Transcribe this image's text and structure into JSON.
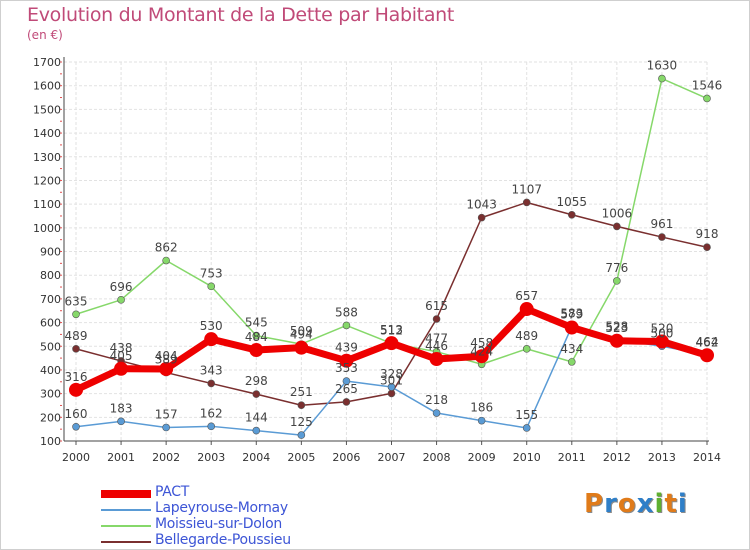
{
  "title": "Evolution du Montant de la Dette par Habitant",
  "unit": "(en €)",
  "logo": {
    "text": "Proxiti",
    "colors": [
      "#e07b1a",
      "#2f7fc8",
      "#e07b1a",
      "#2f7fc8",
      "#5fb030",
      "#e07b1a",
      "#2f7fc8"
    ]
  },
  "chart_data": {
    "type": "line",
    "x": [
      "2000",
      "2001",
      "2002",
      "2003",
      "2004",
      "2005",
      "2006",
      "2007",
      "2008",
      "2009",
      "2010",
      "2011",
      "2012",
      "2013",
      "2014"
    ],
    "ylim": [
      100,
      1700
    ],
    "yticks": [
      "100",
      "200",
      "300",
      "400",
      "500",
      "600",
      "700",
      "800",
      "900",
      "1000",
      "1100",
      "1200",
      "1300",
      "1400",
      "1500",
      "1600",
      "1700"
    ],
    "grid": true,
    "legend_position": "bottom-left",
    "series": [
      {
        "name": "PACT",
        "color": "#ee0000",
        "values": [
          316,
          405,
          404,
          530,
          484,
          494,
          439,
          513,
          446,
          458,
          657,
          579,
          523,
          520,
          462
        ],
        "labels": [
          "316",
          "405",
          "404",
          "530",
          "484",
          "494",
          "439",
          "513",
          "446",
          "458",
          "657",
          "579",
          "523",
          "520",
          "462"
        ]
      },
      {
        "name": "Lapeyrouse-Mornay",
        "color": "#5a9bd5",
        "values": [
          160,
          183,
          157,
          162,
          144,
          125,
          353,
          328,
          218,
          186,
          155,
          583,
          528,
          500,
          464
        ],
        "labels": [
          "160",
          "183",
          "157",
          "162",
          "144",
          "125",
          "353",
          "328",
          "218",
          "186",
          "155",
          "583",
          "528",
          "500",
          "464"
        ]
      },
      {
        "name": "Moissieu-sur-Dolon",
        "color": "#86d86a",
        "values": [
          635,
          696,
          862,
          753,
          545,
          509,
          588,
          512,
          477,
          424,
          489,
          434,
          776,
          1630,
          1546
        ],
        "labels": [
          "635",
          "696",
          "862",
          "753",
          "545",
          "509",
          "588",
          "512",
          "477",
          "424",
          "489",
          "434",
          "776",
          "1630",
          "1546"
        ]
      },
      {
        "name": "Bellegarde-Poussieu",
        "color": "#7a2f2f",
        "values": [
          489,
          438,
          389,
          343,
          298,
          251,
          265,
          301,
          615,
          1043,
          1107,
          1055,
          1006,
          961,
          918
        ],
        "labels": [
          "489",
          "438",
          "389",
          "343",
          "298",
          "251",
          "265",
          "301",
          "615",
          "1043",
          "1107",
          "1055",
          "1006",
          "961",
          "918"
        ]
      }
    ]
  }
}
